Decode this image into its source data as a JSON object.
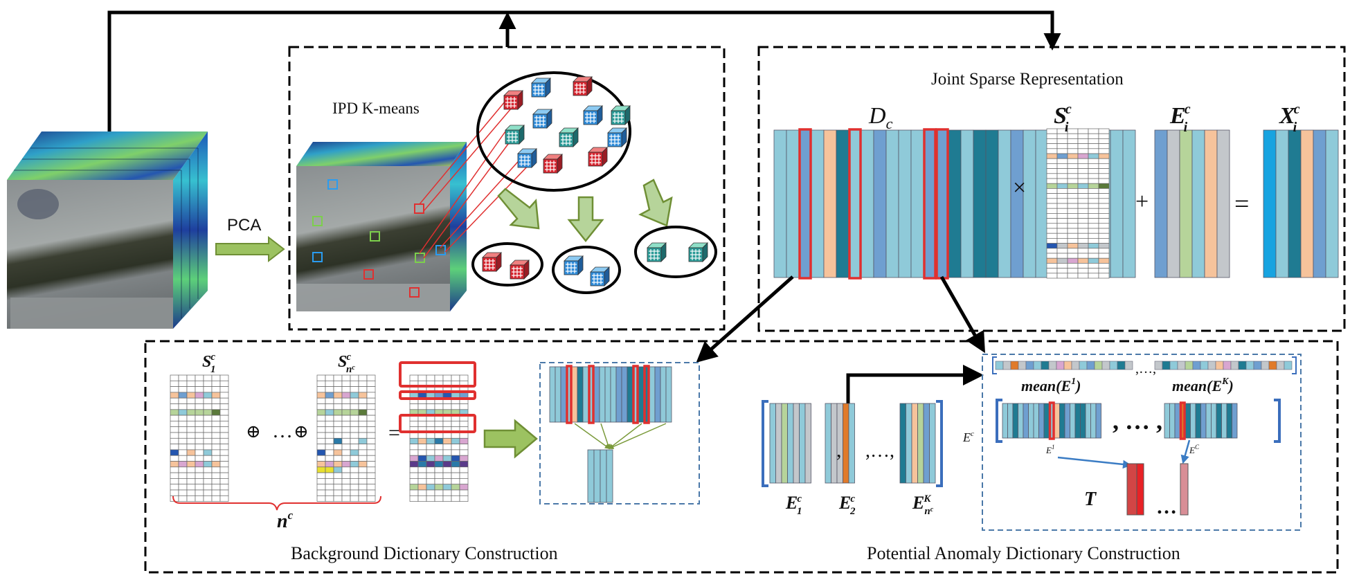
{
  "labels": {
    "pca": "PCA",
    "ipd_kmeans": "IPD K-means",
    "jsr_title": "Joint  Sparse Representation",
    "dc": "D",
    "dc_sub": "c",
    "s_main": "S",
    "s_sub": "i",
    "s_sup": "c",
    "e_main": "E",
    "e_sub": "i",
    "e_sup": "c",
    "x_main": "X",
    "x_sub": "i",
    "x_sup": "c",
    "times": "×",
    "plus": "+",
    "equals": "=",
    "s1": "S",
    "s1_sub": "1",
    "s1_sup": "c",
    "snc": "S",
    "snc_sub": "n",
    "snc_subsup": "c",
    "snc_sup": "c",
    "oplus": "⊕",
    "dots": "…",
    "eq_small": "=",
    "nc": "n",
    "nc_sup": "c",
    "bg_title": "Background Dictionary Construction",
    "pa_title": "Potential Anomaly Dictionary Construction",
    "e1c": "E",
    "e1c_sub": "1",
    "e1c_sup": "c",
    "e2c": "E",
    "e2c_sub": "2",
    "e2c_sup": "c",
    "enc": "E",
    "enc_sub": "n",
    "enc_subsup": "c",
    "enc_sup": "K",
    "comma": ",",
    "comma_dots": ",…,",
    "mean_e1": "mean(E",
    "mean_e1_sup": "1",
    "mean_close": ")",
    "mean_ek": "mean(E",
    "mean_ek_sup": "K",
    "row_dots": ",…,",
    "big_dots": ", … ,",
    "ec_side": "E",
    "ec_side_sup": "c",
    "e1_small": "E",
    "e1_small_sup": "1",
    "ec_small": "E",
    "ec_small_sup": "C",
    "t": "T",
    "t_dots": "…"
  },
  "colors": {
    "lightblue": "#8fcad9",
    "blue": "#6f9fd0",
    "teal": "#1f7b92",
    "peach": "#f6c39b",
    "sage": "#b6d49a",
    "grey": "#c3c7cb",
    "red": "#e0302f",
    "green_arrow": "#9cc261"
  }
}
